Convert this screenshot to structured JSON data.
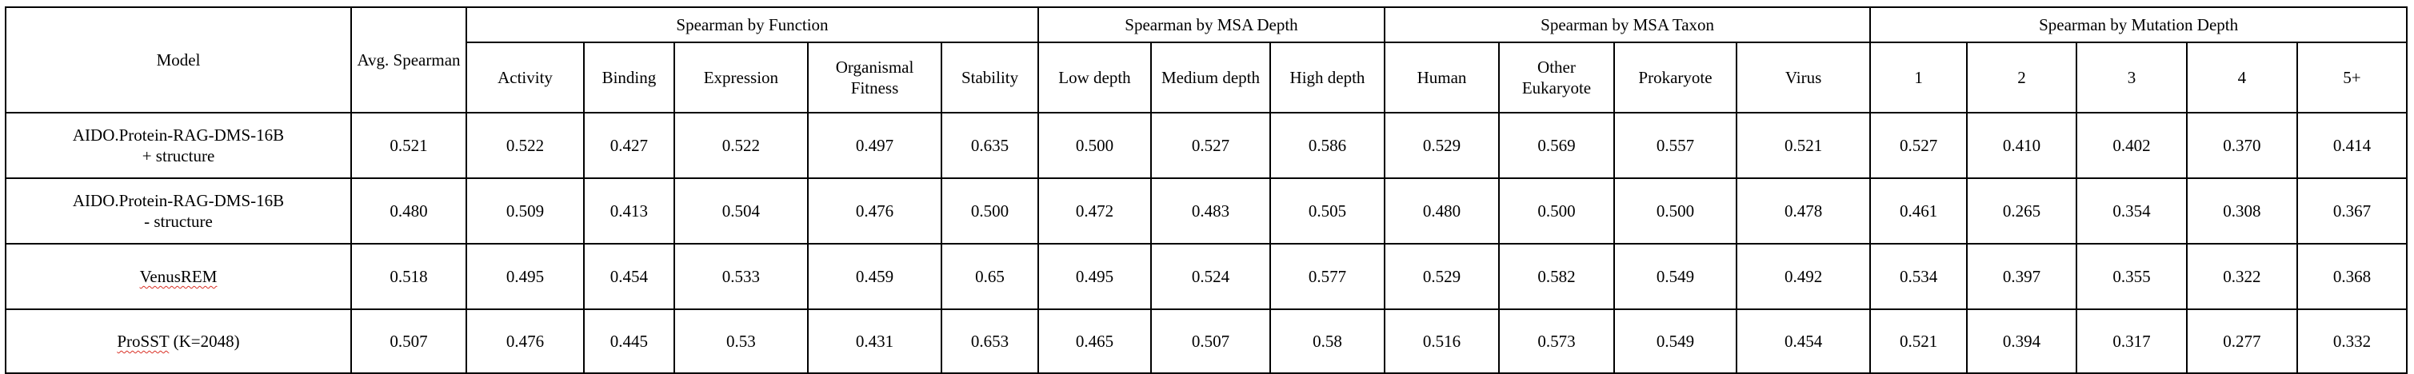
{
  "headers": {
    "model": "Model",
    "avg_spearman": "Avg. Spearman",
    "groups": {
      "function": "Spearman by Function",
      "msa_depth": "Spearman by MSA Depth",
      "msa_taxon": "Spearman by MSA Taxon",
      "mutation_depth": "Spearman by Mutation Depth"
    },
    "function_cols": [
      "Activity",
      "Binding",
      "Expression",
      "Organismal Fitness",
      "Stability"
    ],
    "msa_depth_cols": [
      "Low depth",
      "Medium depth",
      "High depth"
    ],
    "msa_taxon_cols": [
      "Human",
      "Other Eukaryote",
      "Prokaryote",
      "Virus"
    ],
    "mutation_depth_cols": [
      "1",
      "2",
      "3",
      "4",
      "5+"
    ]
  },
  "rows": [
    {
      "model_line1": "AIDO.Protein-RAG-DMS-16B",
      "model_line2": "+ structure",
      "avg": "0.521",
      "function": [
        "0.522",
        "0.427",
        "0.522",
        "0.497",
        "0.635"
      ],
      "msa_depth": [
        "0.500",
        "0.527",
        "0.586"
      ],
      "msa_taxon": [
        "0.529",
        "0.569",
        "0.557",
        "0.521"
      ],
      "mutation_depth": [
        "0.527",
        "0.410",
        "0.402",
        "0.370",
        "0.414"
      ]
    },
    {
      "model_line1": "AIDO.Protein-RAG-DMS-16B",
      "model_line2": "- structure",
      "avg": "0.480",
      "function": [
        "0.509",
        "0.413",
        "0.504",
        "0.476",
        "0.500"
      ],
      "msa_depth": [
        "0.472",
        "0.483",
        "0.505"
      ],
      "msa_taxon": [
        "0.480",
        "0.500",
        "0.500",
        "0.478"
      ],
      "mutation_depth": [
        "0.461",
        "0.265",
        "0.354",
        "0.308",
        "0.367"
      ]
    },
    {
      "model_line1": "VenusREM",
      "model_line2": "",
      "avg": "0.518",
      "function": [
        "0.495",
        "0.454",
        "0.533",
        "0.459",
        "0.65"
      ],
      "msa_depth": [
        "0.495",
        "0.524",
        "0.577"
      ],
      "msa_taxon": [
        "0.529",
        "0.582",
        "0.549",
        "0.492"
      ],
      "mutation_depth": [
        "0.534",
        "0.397",
        "0.355",
        "0.322",
        "0.368"
      ]
    },
    {
      "model_line1": "ProSST",
      "model_line2": " (K=2048)",
      "avg": "0.507",
      "function": [
        "0.476",
        "0.445",
        "0.53",
        "0.431",
        "0.653"
      ],
      "msa_depth": [
        "0.465",
        "0.507",
        "0.58"
      ],
      "msa_taxon": [
        "0.516",
        "0.573",
        "0.549",
        "0.454"
      ],
      "mutation_depth": [
        "0.521",
        "0.394",
        "0.317",
        "0.277",
        "0.332"
      ]
    }
  ]
}
